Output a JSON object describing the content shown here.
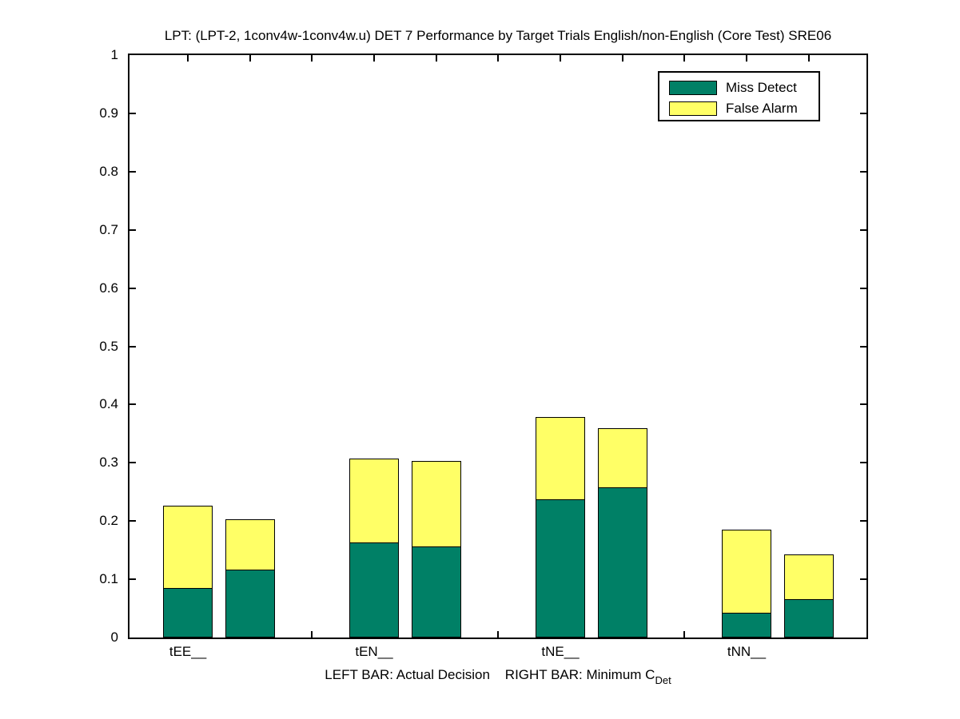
{
  "title": "LPT: (LPT-2, 1conv4w-1conv4w.u) DET 7 Performance by Target Trials English/non-English (Core Test) SRE06",
  "legend": {
    "items": [
      {
        "label": "Miss Detect",
        "color": "#008066"
      },
      {
        "label": "False Alarm",
        "color": "#ffff66"
      }
    ]
  },
  "footnote": {
    "main": "LEFT BAR: Actual Decision    RIGHT BAR: Minimum C",
    "subscript": "Det"
  },
  "colors": {
    "miss_detect": "#008066",
    "false_alarm": "#ffff66",
    "axis": "#000000",
    "background": "#ffffff"
  },
  "chart_data": {
    "type": "bar",
    "stacked": true,
    "title": "LPT: (LPT-2, 1conv4w-1conv4w.u) DET 7 Performance by Target Trials English/non-English (Core Test) SRE06",
    "categories": [
      "tEE__",
      "tEN__",
      "tNE__",
      "tNN__"
    ],
    "pair_meaning": {
      "left_bar": "Actual Decision",
      "right_bar": "Minimum C_Det"
    },
    "series": [
      {
        "name": "Miss Detect",
        "color": "#008066",
        "left_bar_values": [
          0.085,
          0.163,
          0.237,
          0.042
        ],
        "right_bar_values": [
          0.117,
          0.156,
          0.258,
          0.066
        ]
      },
      {
        "name": "False Alarm",
        "color": "#ffff66",
        "left_bar_values": [
          0.144,
          0.147,
          0.144,
          0.145
        ],
        "right_bar_values": [
          0.089,
          0.149,
          0.104,
          0.08
        ]
      }
    ],
    "stacked_totals": {
      "left_bar": [
        0.229,
        0.31,
        0.381,
        0.187
      ],
      "right_bar": [
        0.206,
        0.305,
        0.362,
        0.146
      ]
    },
    "xlabel": "LEFT BAR: Actual Decision    RIGHT BAR: Minimum C_Det",
    "ylabel": "",
    "ylim": [
      0,
      1
    ],
    "yticks": [
      "0",
      "0.1",
      "0.2",
      "0.3",
      "0.4",
      "0.5",
      "0.6",
      "0.7",
      "0.8",
      "0.9",
      "1"
    ],
    "grid": false,
    "legend_position": "top-right",
    "legend_entries": [
      "Miss Detect",
      "False Alarm"
    ]
  }
}
